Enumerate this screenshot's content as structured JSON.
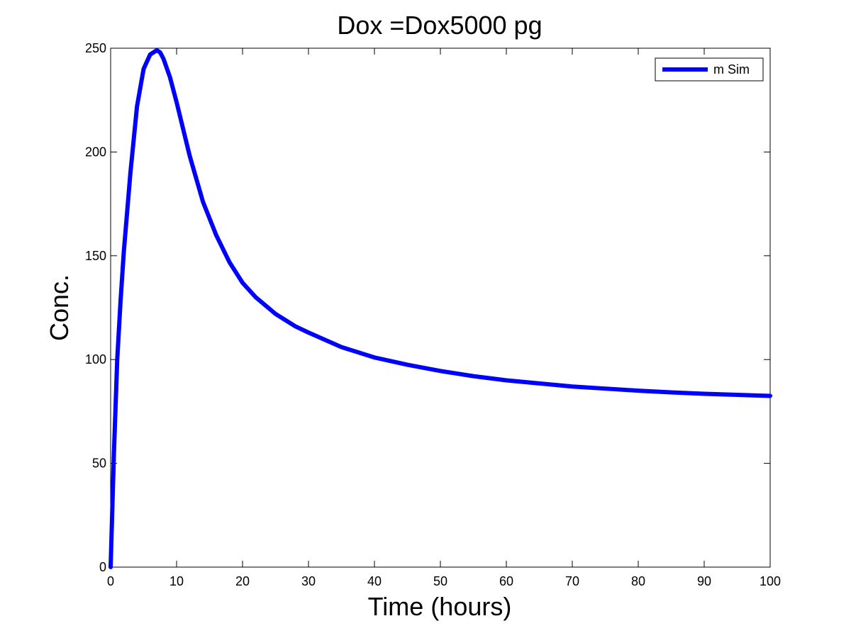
{
  "chart_data": {
    "type": "line",
    "title": "Dox =Dox5000 pg",
    "xlabel": "Time (hours)",
    "ylabel": "Conc.",
    "xlim": [
      0,
      100
    ],
    "ylim": [
      0,
      250
    ],
    "xticks": [
      0,
      10,
      20,
      30,
      40,
      50,
      60,
      70,
      80,
      90,
      100
    ],
    "yticks": [
      0,
      50,
      100,
      150,
      200,
      250
    ],
    "grid": false,
    "legend_position": "top-right",
    "series": [
      {
        "name": "m Sim",
        "color": "#0000ff",
        "x": [
          0,
          0.5,
          1,
          1.5,
          2,
          3,
          4,
          5,
          6,
          7,
          7.5,
          8,
          9,
          10,
          11,
          12,
          14,
          16,
          18,
          20,
          22,
          25,
          28,
          30,
          35,
          40,
          45,
          50,
          55,
          60,
          65,
          70,
          75,
          80,
          85,
          90,
          95,
          100
        ],
        "y": [
          0,
          55,
          100,
          128,
          152,
          190,
          222,
          240,
          247,
          249,
          248,
          245,
          236,
          224,
          211,
          198,
          176,
          160,
          147,
          137,
          130,
          122,
          116,
          113,
          106,
          101,
          97.5,
          94.5,
          92,
          90,
          88.5,
          87,
          86,
          85,
          84.2,
          83.5,
          83,
          82.5
        ]
      }
    ]
  }
}
